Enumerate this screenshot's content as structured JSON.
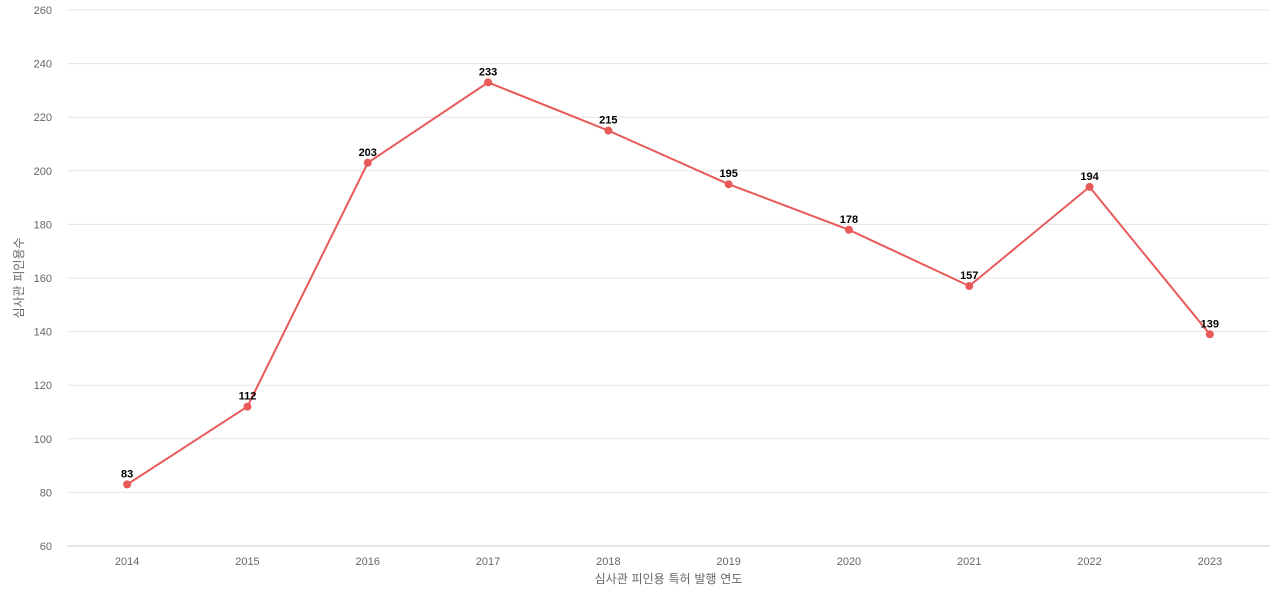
{
  "chart_data": {
    "type": "line",
    "categories": [
      "2014",
      "2015",
      "2016",
      "2017",
      "2018",
      "2019",
      "2020",
      "2021",
      "2022",
      "2023"
    ],
    "series": [
      {
        "values": [
          83,
          112,
          203,
          233,
          215,
          195,
          178,
          157,
          194,
          139
        ]
      }
    ],
    "xlabel": "심사관 피인용 특허 발행 연도",
    "ylabel": "심사관 피인용수",
    "ylim": [
      60,
      260
    ],
    "yticks": [
      60,
      80,
      100,
      120,
      140,
      160,
      180,
      200,
      220,
      240,
      260
    ],
    "grid": true,
    "legend": "none",
    "colors": {
      "line": "#e85a5a",
      "grid": "#e6e6e6",
      "axis_text": "#666666",
      "label_text": "#000000"
    }
  }
}
